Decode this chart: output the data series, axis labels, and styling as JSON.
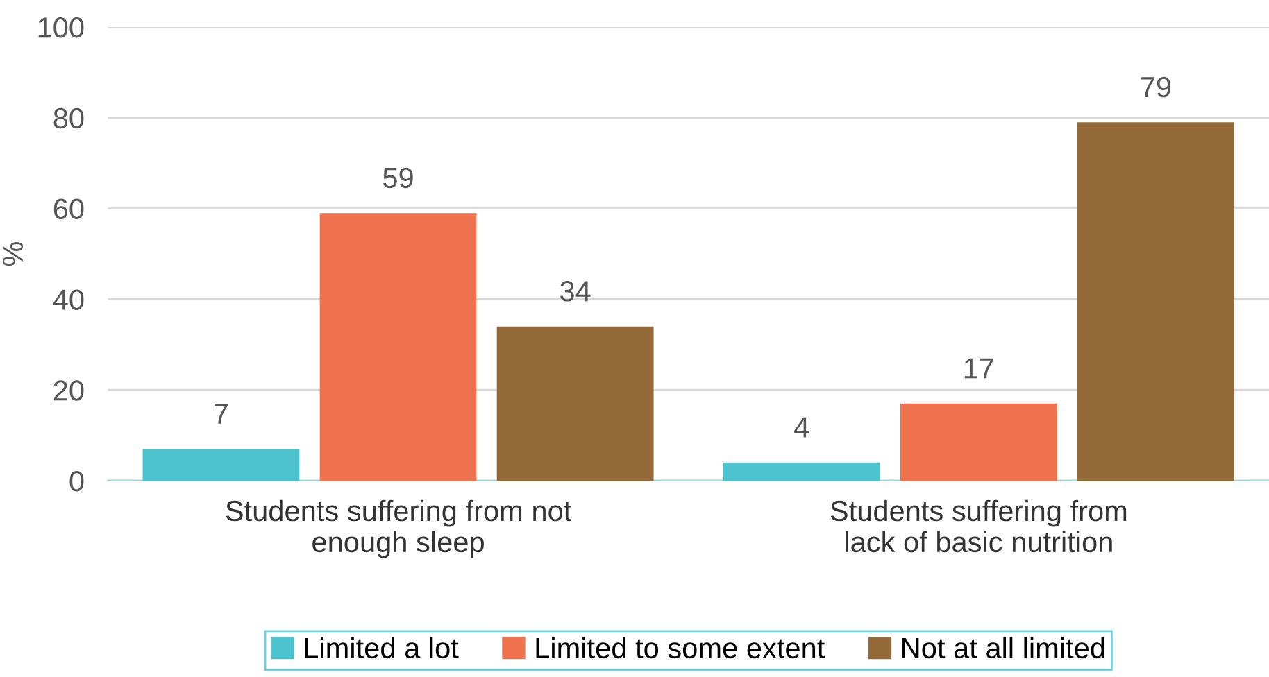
{
  "chart_data": {
    "type": "bar",
    "ylabel": "%",
    "categories": [
      "Students suffering from not\nenough sleep",
      "Students suffering from\nlack of basic nutrition"
    ],
    "series": [
      {
        "name": "Limited a lot",
        "color": "#4cc3cf",
        "values": [
          7,
          4
        ]
      },
      {
        "name": "Limited to some extent",
        "color": "#f07350",
        "values": [
          59,
          17
        ]
      },
      {
        "name": "Not at all limited",
        "color": "#936a38",
        "values": [
          34,
          79
        ]
      }
    ],
    "ylim": [
      0,
      100
    ],
    "yticks": [
      0,
      20,
      40,
      60,
      80,
      100
    ],
    "grid": "y",
    "legend": "bottom",
    "data_labels": true
  }
}
